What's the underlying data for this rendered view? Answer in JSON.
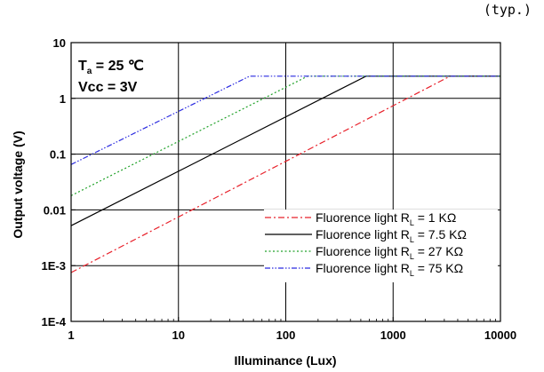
{
  "corner_note": "(typ.)",
  "conditions": {
    "line1_main": "T",
    "line1_sub": "a",
    "line1_rest": " = 25 ℃",
    "line2": "Vcc = 3V"
  },
  "chart_data": {
    "type": "line",
    "title": "",
    "xlabel": "Illuminance (Lux)",
    "ylabel": "Output voltage (V)",
    "xscale": "log",
    "yscale": "log",
    "xlim": [
      1,
      10000
    ],
    "ylim": [
      0.0001,
      10
    ],
    "x_ticks": [
      "1",
      "10",
      "100",
      "1000",
      "10000"
    ],
    "y_ticks": [
      "1E-4",
      "1E-3",
      "0.01",
      "0.1",
      "1",
      "10"
    ],
    "grid": true,
    "legend_position": "bottom-right",
    "series": [
      {
        "name": "Fluorence light R_L = 1 KΩ",
        "legend_main": "Fluorence light R",
        "legend_sub": "L",
        "legend_rest": " = 1 KΩ",
        "color": "#e8202a",
        "dash": "dashdot",
        "x": [
          1,
          3400,
          10000
        ],
        "y": [
          0.00075,
          2.5,
          2.5
        ]
      },
      {
        "name": "Fluorence light R_L = 7.5 KΩ",
        "legend_main": "Fluorence light R",
        "legend_sub": "L",
        "legend_rest": " = 7.5 KΩ",
        "color": "#000000",
        "dash": "solid",
        "x": [
          1,
          560,
          10000
        ],
        "y": [
          0.0052,
          2.5,
          2.5
        ]
      },
      {
        "name": "Fluorence light R_L = 27 KΩ",
        "legend_main": "Fluorence light R",
        "legend_sub": "L",
        "legend_rest": " = 27 KΩ",
        "color": "#22a22a",
        "dash": "dotted",
        "x": [
          1,
          160,
          10000
        ],
        "y": [
          0.018,
          2.5,
          2.5
        ]
      },
      {
        "name": "Fluorence light R_L = 75 KΩ",
        "legend_main": "Fluorence light R",
        "legend_sub": "L",
        "legend_rest": " = 75 KΩ",
        "color": "#2a2ae0",
        "dash": "dashdotdot",
        "x": [
          1,
          46,
          10000
        ],
        "y": [
          0.065,
          2.5,
          2.5
        ]
      }
    ]
  }
}
